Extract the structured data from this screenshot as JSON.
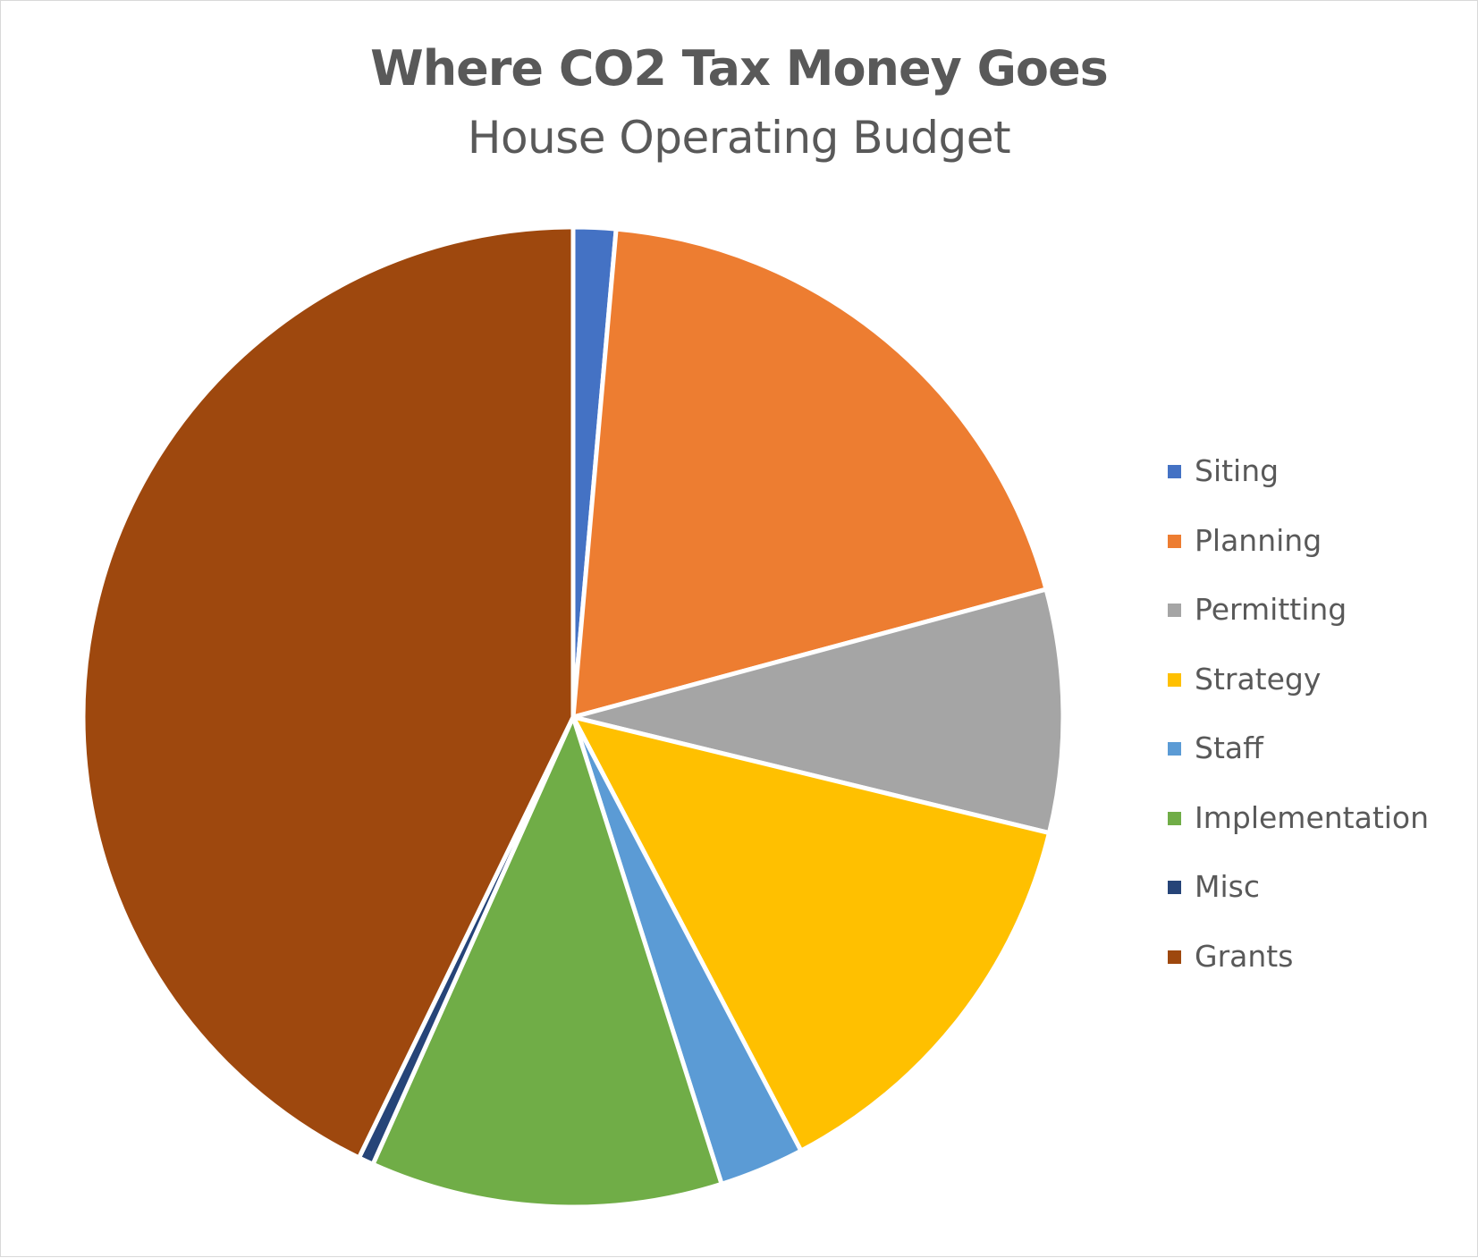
{
  "chart_data": {
    "type": "pie",
    "title": "Where CO2 Tax Money Goes",
    "subtitle": "House Operating Budget",
    "legend_position": "right",
    "slices": [
      {
        "label": "Siting",
        "value": 1.4,
        "color": "#4472C4"
      },
      {
        "label": "Planning",
        "value": 19.4,
        "color": "#ED7D31"
      },
      {
        "label": "Permitting",
        "value": 8.0,
        "color": "#A5A5A5"
      },
      {
        "label": "Strategy",
        "value": 13.5,
        "color": "#FFC000"
      },
      {
        "label": "Staff",
        "value": 2.8,
        "color": "#5B9BD5"
      },
      {
        "label": "Implementation",
        "value": 11.6,
        "color": "#70AD47"
      },
      {
        "label": "Misc",
        "value": 0.5,
        "color": "#264478"
      },
      {
        "label": "Grants",
        "value": 42.8,
        "color": "#9E480E"
      }
    ]
  }
}
